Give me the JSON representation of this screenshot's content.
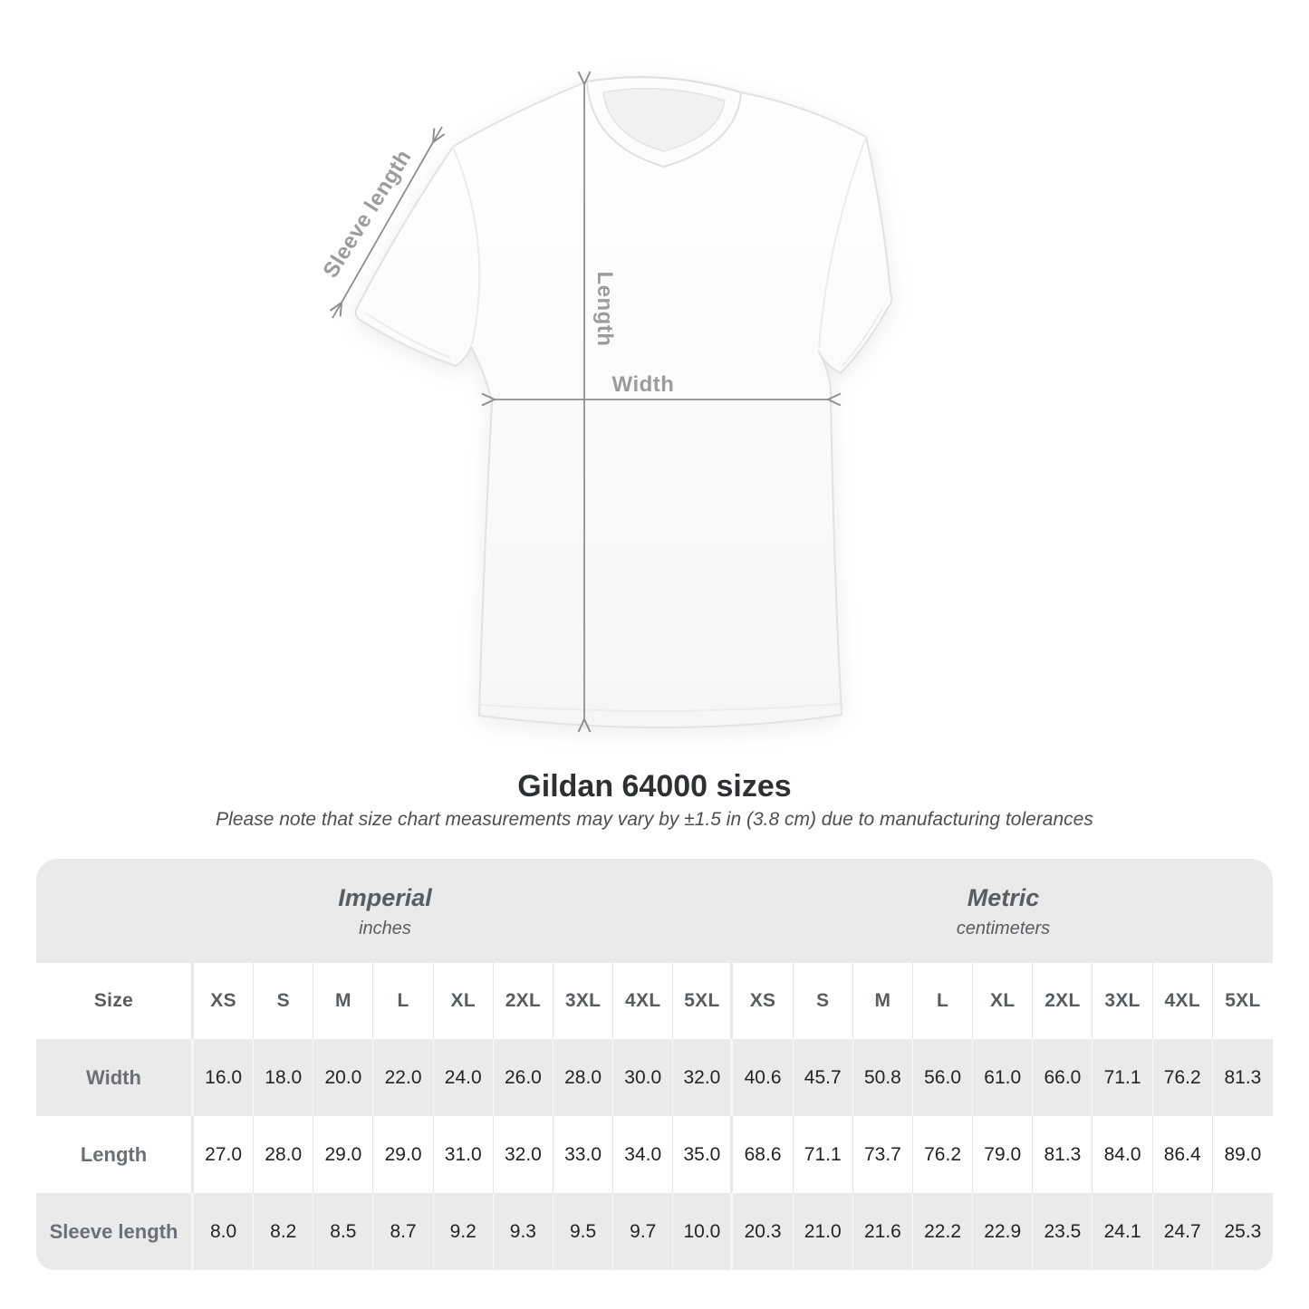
{
  "diagram": {
    "sleeve_label": "Sleeve length",
    "length_label": "Length",
    "width_label": "Width",
    "arrow_color": "#8f8f8f",
    "label_color": "#9c9c9c"
  },
  "title": "Gildan 64000 sizes",
  "note": "Please note that size chart measurements may vary by ±1.5 in (3.8 cm) due to manufacturing tolerances",
  "table": {
    "size_header": "Size",
    "sections": [
      {
        "label": "Imperial",
        "unit": "inches"
      },
      {
        "label": "Metric",
        "unit": "centimeters"
      }
    ],
    "sizes": [
      "XS",
      "S",
      "M",
      "L",
      "XL",
      "2XL",
      "3XL",
      "4XL",
      "5XL"
    ],
    "rows": [
      {
        "label": "Width",
        "imperial": [
          "16.0",
          "18.0",
          "20.0",
          "22.0",
          "24.0",
          "26.0",
          "28.0",
          "30.0",
          "32.0"
        ],
        "metric": [
          "40.6",
          "45.7",
          "50.8",
          "56.0",
          "61.0",
          "66.0",
          "71.1",
          "76.2",
          "81.3"
        ]
      },
      {
        "label": "Length",
        "imperial": [
          "27.0",
          "28.0",
          "29.0",
          "29.0",
          "31.0",
          "32.0",
          "33.0",
          "34.0",
          "35.0"
        ],
        "metric": [
          "68.6",
          "71.1",
          "73.7",
          "76.2",
          "79.0",
          "81.3",
          "84.0",
          "86.4",
          "89.0"
        ]
      },
      {
        "label": "Sleeve length",
        "imperial": [
          "8.0",
          "8.2",
          "8.5",
          "8.7",
          "9.2",
          "9.3",
          "9.5",
          "9.7",
          "10.0"
        ],
        "metric": [
          "20.3",
          "21.0",
          "21.6",
          "22.2",
          "22.9",
          "23.5",
          "24.1",
          "24.7",
          "25.3"
        ]
      }
    ]
  },
  "chart_data": {
    "type": "table",
    "title": "Gildan 64000 sizes",
    "note": "Please note that size chart measurements may vary by ±1.5 in (3.8 cm) due to manufacturing tolerances",
    "sections": [
      "Imperial (inches)",
      "Metric (centimeters)"
    ],
    "columns": [
      "XS",
      "S",
      "M",
      "L",
      "XL",
      "2XL",
      "3XL",
      "4XL",
      "5XL"
    ],
    "rows": [
      {
        "label": "Width",
        "imperial": [
          16.0,
          18.0,
          20.0,
          22.0,
          24.0,
          26.0,
          28.0,
          30.0,
          32.0
        ],
        "metric": [
          40.6,
          45.7,
          50.8,
          56.0,
          61.0,
          66.0,
          71.1,
          76.2,
          81.3
        ]
      },
      {
        "label": "Length",
        "imperial": [
          27.0,
          28.0,
          29.0,
          29.0,
          31.0,
          32.0,
          33.0,
          34.0,
          35.0
        ],
        "metric": [
          68.6,
          71.1,
          73.7,
          76.2,
          79.0,
          81.3,
          84.0,
          86.4,
          89.0
        ]
      },
      {
        "label": "Sleeve length",
        "imperial": [
          8.0,
          8.2,
          8.5,
          8.7,
          9.2,
          9.3,
          9.5,
          9.7,
          10.0
        ],
        "metric": [
          20.3,
          21.0,
          21.6,
          22.2,
          22.9,
          23.5,
          24.1,
          24.7,
          25.3
        ]
      }
    ]
  }
}
